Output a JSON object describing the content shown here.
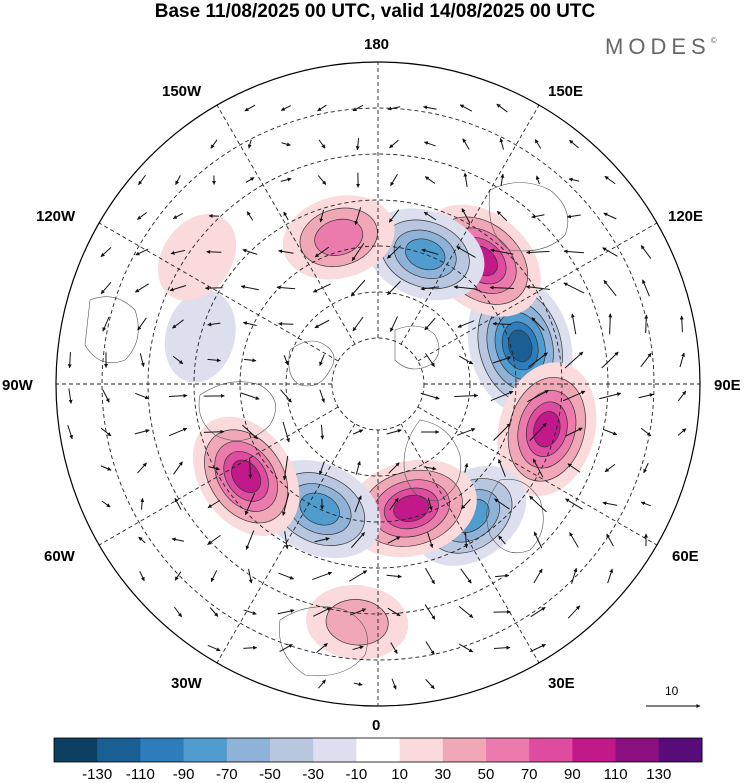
{
  "title": "Base 11/08/2025 00 UTC, valid 14/08/2025 00 UTC",
  "brand": "MODES",
  "brand_mark": "©",
  "longitude_labels": {
    "top": "180",
    "bottom": "0",
    "left": "90W",
    "right": "90E",
    "upper_left": "150W",
    "upper_right": "150E",
    "mid_upper_left": "120W",
    "mid_upper_right": "120E",
    "mid_lower_left": "60W",
    "mid_lower_right": "60E",
    "lower_left": "30W",
    "lower_right": "30E"
  },
  "reference_vector": {
    "value": "10"
  },
  "colorbar": {
    "labels": [
      "-130",
      "-110",
      "-90",
      "-70",
      "-50",
      "-30",
      "-10",
      "10",
      "30",
      "50",
      "70",
      "90",
      "110",
      "130"
    ],
    "colors": [
      "#0c3f62",
      "#1a5f94",
      "#2f7cbc",
      "#519ccf",
      "#8fb3d8",
      "#b8c6e0",
      "#dedfee",
      "#ffffff",
      "#fadadb",
      "#f1a8b6",
      "#ea7bac",
      "#df4b9e",
      "#c1188a",
      "#8a0f7f",
      "#570c79"
    ]
  },
  "chart_data": {
    "type": "heatmap",
    "projection": "north polar stereographic",
    "variable": "anomaly field with wind vectors",
    "contour_levels": [
      -130,
      -110,
      -90,
      -70,
      -50,
      -30,
      -10,
      10,
      30,
      50,
      70,
      90,
      110,
      130
    ],
    "anomaly_centers": [
      {
        "lon": 105,
        "lat": 58,
        "value": -115,
        "sign": "negative"
      },
      {
        "lon": 75,
        "lat": 52,
        "value": 100,
        "sign": "positive"
      },
      {
        "lon": 140,
        "lat": 55,
        "value": 95,
        "sign": "positive"
      },
      {
        "lon": 160,
        "lat": 60,
        "value": -75,
        "sign": "negative"
      },
      {
        "lon": -165,
        "lat": 57,
        "value": 60,
        "sign": "positive"
      },
      {
        "lon": 35,
        "lat": 55,
        "value": -75,
        "sign": "negative"
      },
      {
        "lon": 15,
        "lat": 62,
        "value": 95,
        "sign": "positive"
      },
      {
        "lon": -25,
        "lat": 60,
        "value": -85,
        "sign": "negative"
      },
      {
        "lon": -55,
        "lat": 55,
        "value": 90,
        "sign": "positive"
      },
      {
        "lon": -5,
        "lat": 38,
        "value": 40,
        "sign": "positive"
      },
      {
        "lon": -105,
        "lat": 50,
        "value": -25,
        "sign": "negative"
      },
      {
        "lon": -125,
        "lat": 42,
        "value": 25,
        "sign": "positive"
      }
    ]
  }
}
